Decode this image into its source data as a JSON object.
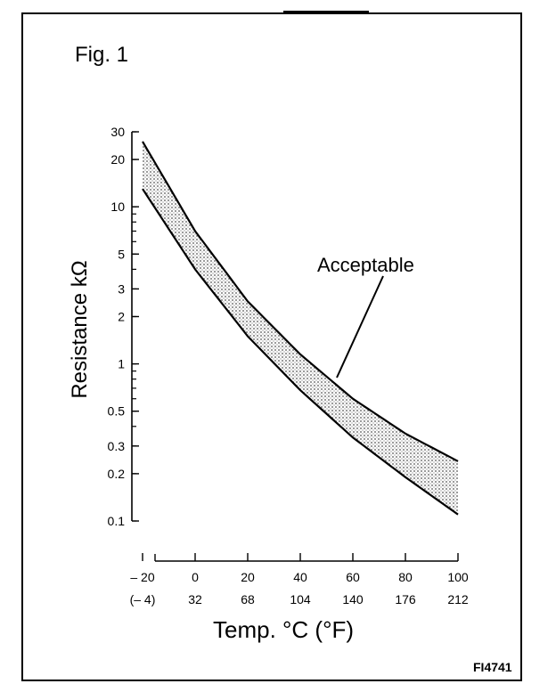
{
  "figure_label": "Fig. 1",
  "figure_code": "FI4741",
  "chart_data": {
    "type": "area",
    "ylabel": "Resistance kΩ",
    "xlabel": "Temp. °C (°F)",
    "y_scale": "log",
    "ylim": [
      0.1,
      30
    ],
    "xlim": [
      -20,
      100
    ],
    "y_ticks": [
      30,
      20,
      10,
      5,
      3,
      2,
      1,
      0.5,
      0.3,
      0.2,
      0.1
    ],
    "y_tick_labels": [
      "30",
      "20",
      "10",
      "5",
      "3",
      "2",
      "1",
      "0.5",
      "0.3",
      "0.2",
      "0.1"
    ],
    "x_ticks": [
      -20,
      0,
      20,
      40,
      60,
      80,
      100
    ],
    "x_tick_labels_c": [
      "– 20",
      "0",
      "20",
      "40",
      "60",
      "80",
      "100"
    ],
    "x_tick_labels_f": [
      "(– 4)",
      "32",
      "68",
      "104",
      "140",
      "176",
      "212"
    ],
    "annotation": "Acceptable",
    "grid": false,
    "series": [
      {
        "x": [
          -20,
          0,
          20,
          40,
          60,
          80,
          100
        ],
        "values": [
          26,
          7.0,
          2.5,
          1.15,
          0.6,
          0.36,
          0.24
        ]
      },
      {
        "x": [
          -20,
          0,
          20,
          40,
          60,
          80,
          100
        ],
        "values": [
          13,
          4.0,
          1.5,
          0.68,
          0.34,
          0.19,
          0.11
        ]
      }
    ],
    "band_color": "#888888"
  }
}
